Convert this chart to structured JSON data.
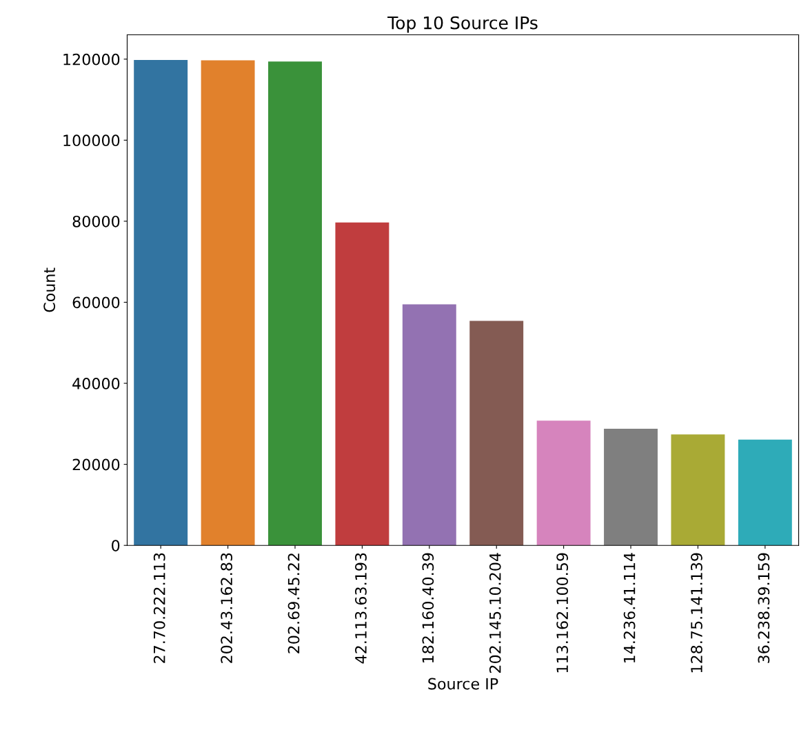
{
  "chart_data": {
    "type": "bar",
    "title": "Top 10 Source IPs",
    "xlabel": "Source IP",
    "ylabel": "Count",
    "categories": [
      "27.70.222.113",
      "202.43.162.83",
      "202.69.45.22",
      "42.113.63.193",
      "182.160.40.39",
      "202.145.10.204",
      "113.162.100.59",
      "14.236.41.114",
      "128.75.141.139",
      "36.238.39.159"
    ],
    "values": [
      119800,
      119700,
      119400,
      79700,
      59500,
      55400,
      30800,
      28800,
      27400,
      26100
    ],
    "colors": [
      "#3274a1",
      "#e1812c",
      "#3a923a",
      "#c03d3e",
      "#9372b2",
      "#845b53",
      "#d684bd",
      "#7f7f7f",
      "#a9aa35",
      "#2eabb8"
    ],
    "ylim": [
      0,
      126000
    ],
    "yticks": [
      0,
      20000,
      40000,
      60000,
      80000,
      100000,
      120000
    ],
    "grid": false,
    "legend": false
  }
}
